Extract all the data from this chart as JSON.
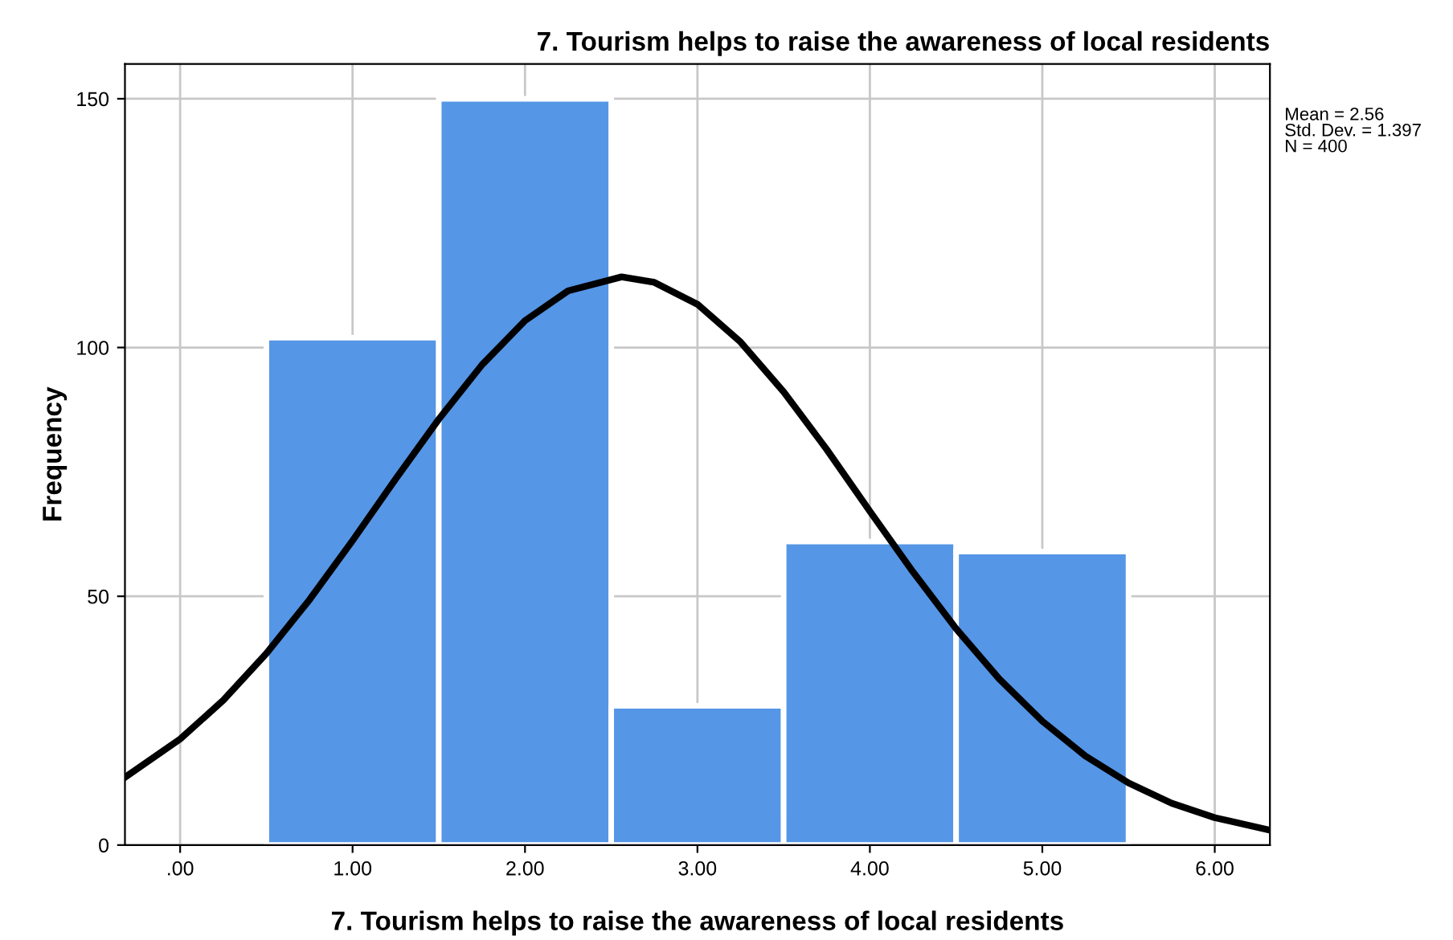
{
  "chart_data": {
    "type": "histogram",
    "title": "7. Tourism helps to raise the awareness of local residents",
    "xlabel": "7. Tourism helps to raise the awareness of local residents",
    "ylabel": "Frequency",
    "bins": [
      0.5,
      1.5,
      2.5,
      3.5,
      4.5,
      5.5
    ],
    "series": [
      {
        "color": "#5596e6",
        "values": [
          102,
          150,
          28,
          61,
          59
        ]
      },
      {
        "type": "line",
        "color": "#000000",
        "x": [
          -0.32,
          0,
          0.25,
          0.5,
          0.75,
          1,
          1.25,
          1.5,
          1.75,
          2,
          2.25,
          2.56,
          2.75,
          3,
          3.25,
          3.5,
          3.75,
          4,
          4.25,
          4.5,
          4.75,
          5,
          5.25,
          5.5,
          5.75,
          6,
          6.32
        ],
        "values": [
          13.6,
          21.3,
          29.1,
          38.5,
          49.3,
          61.2,
          73.6,
          85.6,
          96.5,
          105.4,
          111.4,
          114.2,
          113.1,
          108.7,
          101.1,
          91.1,
          79.5,
          67.1,
          54.9,
          43.5,
          33.4,
          24.9,
          17.9,
          12.5,
          8.4,
          5.5,
          3.0
        ]
      }
    ],
    "annotations": [
      "Mean = 2.56\nStd. Dev. = 1.397\nN = 400"
    ],
    "xlim": [
      -0.32,
      6.32
    ],
    "xticks": [
      {
        "value": 0,
        "label": ".00"
      },
      {
        "value": 1,
        "label": "1.00"
      },
      {
        "value": 2,
        "label": "2.00"
      },
      {
        "value": 3,
        "label": "3.00"
      },
      {
        "value": 4,
        "label": "4.00"
      },
      {
        "value": 5,
        "label": "5.00"
      },
      {
        "value": 6,
        "label": "6.00"
      }
    ],
    "ylim": [
      0,
      157
    ],
    "yticks": [
      0,
      50,
      100,
      150
    ],
    "grid": true
  }
}
